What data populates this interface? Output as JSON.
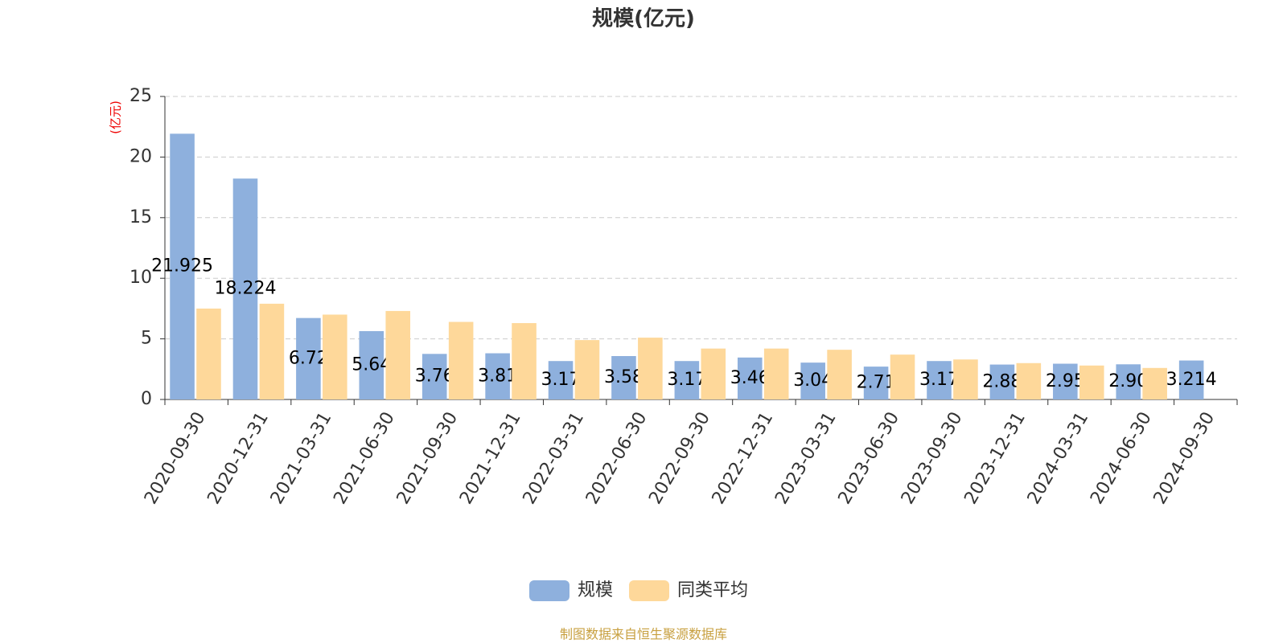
{
  "chart_data": {
    "type": "bar",
    "title": "规模(亿元)",
    "y_label": "(亿元)",
    "categories": [
      "2020-09-30",
      "2020-12-31",
      "2021-03-31",
      "2021-06-30",
      "2021-09-30",
      "2021-12-31",
      "2022-03-31",
      "2022-06-30",
      "2022-09-30",
      "2022-12-31",
      "2023-03-31",
      "2023-06-30",
      "2023-09-30",
      "2023-12-31",
      "2024-03-31",
      "2024-06-30",
      "2024-09-30"
    ],
    "series": [
      {
        "name": "规模",
        "color": "#8eb0dd",
        "values": [
          21.925,
          18.224,
          6.72,
          5.64,
          3.76,
          3.81,
          3.17,
          3.58,
          3.17,
          3.46,
          3.04,
          2.71,
          3.17,
          2.88,
          2.95,
          2.9,
          3.214
        ],
        "value_labels": [
          "21.925",
          "18.224",
          "6.72",
          "5.64",
          "3.76",
          "3.81",
          "3.17",
          "3.58",
          "3.17",
          "3.46",
          "3.04",
          "2.71",
          "3.17",
          "2.88",
          "2.95",
          "2.90",
          "3.214"
        ]
      },
      {
        "name": "同类平均",
        "color": "#fed89a",
        "values": [
          7.5,
          7.9,
          7.0,
          7.3,
          6.4,
          6.3,
          4.9,
          5.1,
          4.2,
          4.2,
          4.1,
          3.7,
          3.3,
          3.0,
          2.8,
          2.6,
          null
        ]
      }
    ],
    "ylim": [
      0,
      25
    ],
    "yticks": [
      0,
      5,
      10,
      15,
      20,
      25
    ],
    "grid": true,
    "legend": "bottom",
    "source": "制图数据来自恒生聚源数据库"
  }
}
